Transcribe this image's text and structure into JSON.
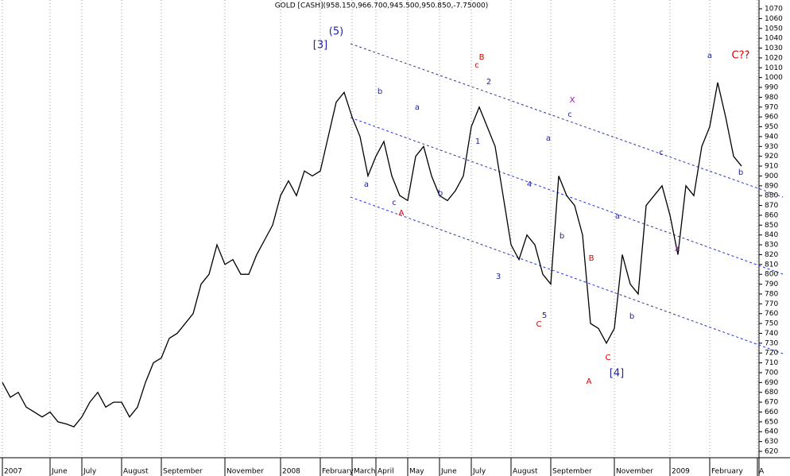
{
  "chart_data": {
    "type": "line",
    "title": "GOLD [CASH](958.150,966.700,945.500,950.850,-7.75000)",
    "categories": [
      "2007",
      null,
      null,
      null,
      null,
      null,
      "June",
      null,
      null,
      null,
      "July",
      null,
      null,
      null,
      null,
      "August",
      null,
      null,
      null,
      null,
      "September",
      null,
      null,
      null,
      null,
      null,
      null,
      null,
      "November",
      null,
      null,
      null,
      null,
      null,
      null,
      "2008",
      null,
      null,
      null,
      null,
      "February",
      null,
      null,
      null,
      "March",
      null,
      null,
      "April",
      null,
      null,
      null,
      "May",
      null,
      null,
      null,
      "June",
      null,
      null,
      null,
      "July",
      null,
      null,
      null,
      null,
      "August",
      null,
      null,
      null,
      null,
      "September",
      null,
      null,
      null,
      null,
      null,
      null,
      null,
      "November",
      null,
      null,
      null,
      null,
      null,
      null,
      "2009",
      null,
      null,
      null,
      null,
      "February",
      null,
      null,
      null,
      null,
      null,
      "A"
    ],
    "series": [
      {
        "name": "GOLD [CASH]",
        "color": "#000000",
        "values": [
          690,
          675,
          680,
          665,
          660,
          655,
          660,
          650,
          648,
          645,
          655,
          670,
          680,
          665,
          670,
          670,
          655,
          665,
          690,
          710,
          715,
          735,
          740,
          750,
          760,
          790,
          800,
          830,
          810,
          815,
          800,
          800,
          820,
          835,
          850,
          880,
          895,
          880,
          905,
          900,
          905,
          940,
          975,
          985,
          960,
          940,
          900,
          920,
          935,
          900,
          880,
          875,
          920,
          930,
          900,
          880,
          875,
          885,
          900,
          950,
          970,
          950,
          930,
          880,
          830,
          815,
          840,
          830,
          800,
          790,
          900,
          880,
          870,
          840,
          750,
          745,
          730,
          745,
          820,
          790,
          780,
          870,
          880,
          890,
          860,
          820,
          890,
          880,
          930,
          950,
          995,
          960,
          920,
          910,
          null,
          null
        ]
      }
    ],
    "ylim": [
      620,
      1070
    ],
    "yticks": [
      620,
      630,
      640,
      650,
      660,
      670,
      680,
      690,
      700,
      710,
      720,
      730,
      740,
      750,
      760,
      770,
      780,
      790,
      800,
      810,
      820,
      830,
      840,
      850,
      860,
      870,
      880,
      890,
      900,
      910,
      920,
      930,
      940,
      950,
      960,
      970,
      980,
      990,
      1000,
      1010,
      1020,
      1030,
      1040,
      1050,
      1060,
      1070
    ],
    "grid": true,
    "annotations": [
      {
        "text": "[3]",
        "color": "#22229a"
      },
      {
        "text": "(5)",
        "color": "#22229a"
      },
      {
        "text": "b",
        "color": "#22229a"
      },
      {
        "text": "a",
        "color": "#22229a"
      },
      {
        "text": "c",
        "color": "#22229a"
      },
      {
        "text": "A",
        "color": "#d40000"
      },
      {
        "text": "a",
        "color": "#22229a"
      },
      {
        "text": "b",
        "color": "#22229a"
      },
      {
        "text": "c",
        "color": "#d40000"
      },
      {
        "text": "B",
        "color": "#d40000"
      },
      {
        "text": "2",
        "color": "#22229a"
      },
      {
        "text": "1",
        "color": "#22229a"
      },
      {
        "text": "3",
        "color": "#22229a"
      },
      {
        "text": "4",
        "color": "#22229a"
      },
      {
        "text": "5",
        "color": "#22229a"
      },
      {
        "text": "C",
        "color": "#d40000"
      },
      {
        "text": "a",
        "color": "#22229a"
      },
      {
        "text": "c",
        "color": "#22229a"
      },
      {
        "text": "X",
        "color": "#8a1a9a"
      },
      {
        "text": "b",
        "color": "#22229a"
      },
      {
        "text": "B",
        "color": "#d40000"
      },
      {
        "text": "A",
        "color": "#d40000"
      },
      {
        "text": "C",
        "color": "#d40000"
      },
      {
        "text": "[4]",
        "color": "#22229a"
      },
      {
        "text": "a",
        "color": "#22229a"
      },
      {
        "text": "b",
        "color": "#22229a"
      },
      {
        "text": "c",
        "color": "#22229a"
      },
      {
        "text": "X",
        "color": "#8a1a9a"
      },
      {
        "text": "a",
        "color": "#22229a"
      },
      {
        "text": "C??",
        "color": "#d40000"
      },
      {
        "text": "b",
        "color": "#22229a"
      }
    ]
  }
}
